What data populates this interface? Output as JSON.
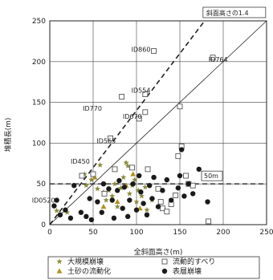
{
  "chart_data": {
    "type": "scatter",
    "xlabel": "全斜面高さ(m)",
    "ylabel": "堆積長(m)",
    "xlim": [
      0,
      250
    ],
    "ylim": [
      0,
      250
    ],
    "xticks": [
      "0",
      "50",
      "100",
      "150",
      "200",
      "250"
    ],
    "yticks": [
      "0",
      "50",
      "100",
      "150",
      "200",
      "250"
    ],
    "grid": true,
    "reference_lines": [
      {
        "label": "斜面高さの1.4",
        "slope": 1.4,
        "style": "dashed"
      },
      {
        "label": "",
        "slope": 1.0,
        "style": "solid"
      },
      {
        "label": "50m",
        "y": 50,
        "style": "dashed"
      }
    ],
    "annotations": [
      {
        "text": "ID860",
        "x": 118,
        "y": 212
      },
      {
        "text": "ID764",
        "x": 185,
        "y": 200
      },
      {
        "text": "ID554",
        "x": 118,
        "y": 162
      },
      {
        "text": "ID770",
        "x": 62,
        "y": 140
      },
      {
        "text": "ID670",
        "x": 108,
        "y": 130
      },
      {
        "text": "ID565",
        "x": 78,
        "y": 100
      },
      {
        "text": "ID450",
        "x": 48,
        "y": 75
      },
      {
        "text": "ID0520",
        "x": 8,
        "y": 27
      }
    ],
    "legend_position": "bottom",
    "series": [
      {
        "name": "大規模崩壊",
        "marker": "star",
        "color": "#8a8a3a",
        "points": [
          [
            8,
            17
          ],
          [
            20,
            15
          ],
          [
            40,
            62
          ],
          [
            42,
            48
          ],
          [
            48,
            55
          ],
          [
            55,
            44
          ],
          [
            58,
            73
          ],
          [
            62,
            40
          ],
          [
            65,
            30
          ],
          [
            68,
            42
          ],
          [
            72,
            35
          ],
          [
            75,
            50
          ],
          [
            78,
            22
          ],
          [
            82,
            45
          ],
          [
            85,
            58
          ],
          [
            88,
            76
          ],
          [
            90,
            72
          ],
          [
            92,
            38
          ],
          [
            95,
            48
          ],
          [
            98,
            55
          ],
          [
            100,
            28
          ],
          [
            102,
            42
          ],
          [
            106,
            35
          ],
          [
            110,
            46
          ],
          [
            112,
            18
          ],
          [
            118,
            30
          ]
        ]
      },
      {
        "name": "土砂の流動化",
        "marker": "triangle",
        "color": "#b09020",
        "points": [
          [
            52,
            58
          ],
          [
            62,
            22
          ],
          [
            78,
            28
          ],
          [
            88,
            48
          ],
          [
            96,
            62
          ],
          [
            104,
            20
          ]
        ]
      },
      {
        "name": "流動的すべり",
        "marker": "square",
        "color": "#555555",
        "points": [
          [
            120,
            213
          ],
          [
            188,
            205
          ],
          [
            150,
            145
          ],
          [
            110,
            160
          ],
          [
            110,
            138
          ],
          [
            83,
            157
          ],
          [
            103,
            130
          ],
          [
            70,
            106
          ],
          [
            37,
            60
          ],
          [
            50,
            62
          ],
          [
            63,
            38
          ],
          [
            75,
            68
          ],
          [
            95,
            70
          ],
          [
            113,
            68
          ],
          [
            125,
            44
          ],
          [
            128,
            28
          ],
          [
            130,
            20
          ],
          [
            135,
            16
          ],
          [
            140,
            25
          ],
          [
            145,
            36
          ],
          [
            148,
            84
          ],
          [
            152,
            96
          ],
          [
            157,
            60
          ],
          [
            160,
            50
          ],
          [
            165,
            48
          ],
          [
            183,
            4
          ]
        ]
      },
      {
        "name": "表層崩壊",
        "marker": "circle",
        "color": "#1a1a1a",
        "points": [
          [
            5,
            23
          ],
          [
            8,
            30
          ],
          [
            12,
            12
          ],
          [
            18,
            18
          ],
          [
            24,
            8
          ],
          [
            28,
            48
          ],
          [
            36,
            15
          ],
          [
            42,
            10
          ],
          [
            46,
            32
          ],
          [
            48,
            6
          ],
          [
            55,
            28
          ],
          [
            60,
            15
          ],
          [
            62,
            50
          ],
          [
            68,
            44
          ],
          [
            72,
            30
          ],
          [
            74,
            8
          ],
          [
            78,
            42
          ],
          [
            80,
            54
          ],
          [
            84,
            20
          ],
          [
            86,
            46
          ],
          [
            90,
            10
          ],
          [
            92,
            30
          ],
          [
            96,
            50
          ],
          [
            100,
            18
          ],
          [
            103,
            60
          ],
          [
            105,
            40
          ],
          [
            108,
            26
          ],
          [
            112,
            12
          ],
          [
            115,
            48
          ],
          [
            118,
            32
          ],
          [
            120,
            58
          ],
          [
            125,
            22
          ],
          [
            130,
            42
          ],
          [
            135,
            55
          ],
          [
            140,
            30
          ],
          [
            148,
            45
          ],
          [
            150,
            60
          ],
          [
            152,
            92
          ],
          [
            155,
            35
          ],
          [
            160,
            50
          ],
          [
            165,
            38
          ],
          [
            172,
            68
          ],
          [
            182,
            28
          ]
        ]
      }
    ]
  }
}
